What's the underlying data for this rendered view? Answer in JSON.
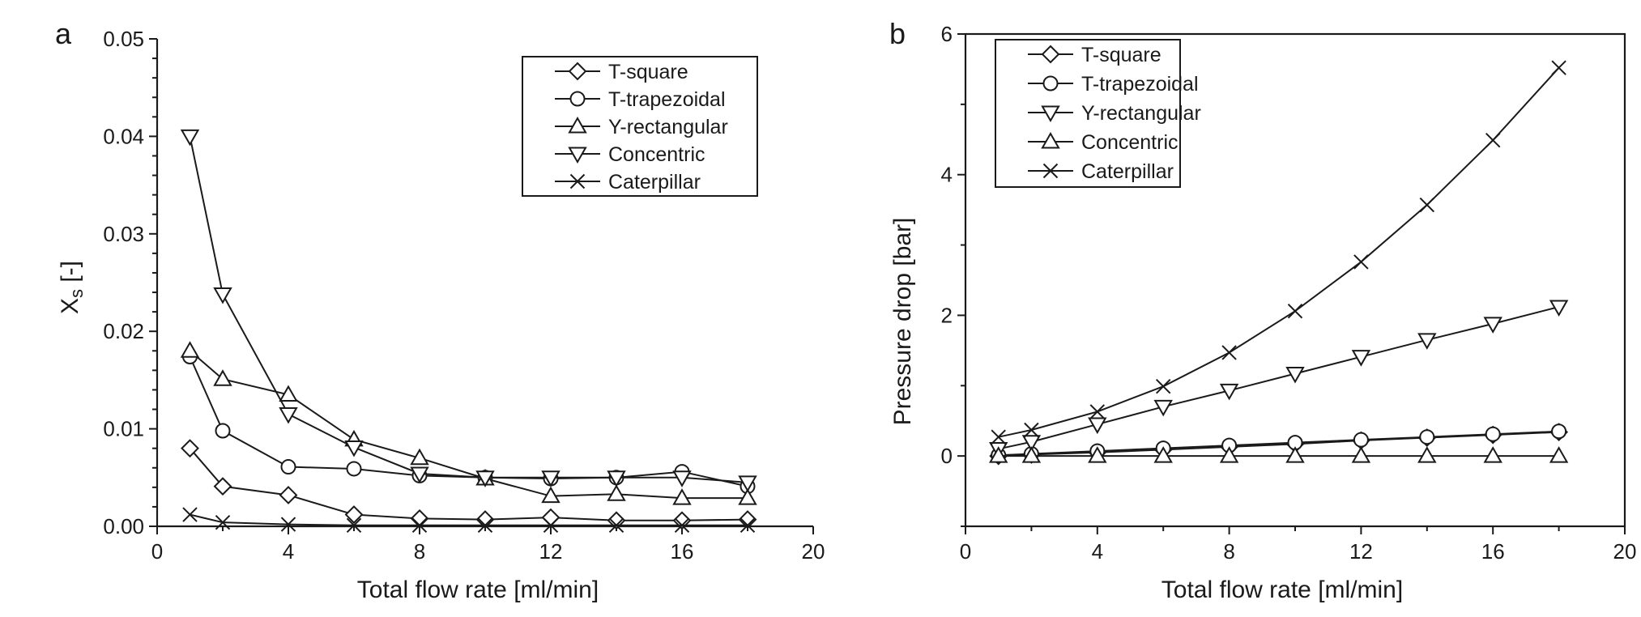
{
  "chart_data": [
    {
      "type": "line",
      "panel": "a",
      "title": "",
      "xlabel": "Total flow rate [ml/min]",
      "ylabel": "X",
      "ylabel_sub": "s",
      "ylabel_suffix": " [-]",
      "xlim": [
        0,
        20
      ],
      "ylim": [
        0,
        0.05
      ],
      "x_ticks": [
        "0",
        "4",
        "8",
        "12",
        "16",
        "20"
      ],
      "y_ticks": [
        "0.00",
        "0.01",
        "0.02",
        "0.03",
        "0.04",
        "0.05"
      ],
      "grid": false,
      "legend_position": "top-right",
      "series": [
        {
          "name": "T-square",
          "marker": "diamond",
          "x": [
            1,
            2,
            4,
            6,
            8,
            10,
            12,
            14,
            16,
            18
          ],
          "y": [
            0.008,
            0.0041,
            0.0032,
            0.0012,
            0.0008,
            0.0007,
            0.0009,
            0.0006,
            0.0006,
            0.0007
          ]
        },
        {
          "name": "T-trapezoidal",
          "marker": "circle",
          "x": [
            1,
            2,
            4,
            6,
            8,
            10,
            12,
            14,
            16,
            18
          ],
          "y": [
            0.0174,
            0.0098,
            0.0061,
            0.0059,
            0.0052,
            0.005,
            0.0049,
            0.005,
            0.0056,
            0.0041
          ]
        },
        {
          "name": "Y-rectangular",
          "marker": "triangle-up",
          "x": [
            1,
            2,
            4,
            6,
            8,
            10,
            12,
            14,
            16,
            18
          ],
          "y": [
            0.018,
            0.0151,
            0.0135,
            0.0089,
            0.007,
            0.0049,
            0.0031,
            0.0033,
            0.0029,
            0.0029
          ]
        },
        {
          "name": "Concentric",
          "marker": "triangle-down",
          "x": [
            1,
            2,
            4,
            6,
            8,
            10,
            12,
            14,
            16,
            18
          ],
          "y": [
            0.04,
            0.0238,
            0.0115,
            0.0081,
            0.0054,
            0.005,
            0.005,
            0.005,
            0.005,
            0.0045
          ]
        },
        {
          "name": "Caterpillar",
          "marker": "x",
          "x": [
            1,
            2,
            4,
            6,
            8,
            10,
            12,
            14,
            16,
            18
          ],
          "y": [
            0.0012,
            0.0004,
            0.0002,
            0.0001,
            0.0001,
            0.0001,
            0.0001,
            0.0001,
            0.0001,
            0.0001
          ]
        }
      ]
    },
    {
      "type": "line",
      "panel": "b",
      "title": "",
      "xlabel": "Total flow rate [ml/min]",
      "ylabel": "Pressure drop [bar]",
      "xlim": [
        0,
        20
      ],
      "ylim": [
        -1,
        6
      ],
      "x_ticks": [
        "0",
        "4",
        "8",
        "12",
        "16",
        "20"
      ],
      "y_ticks": [
        "0",
        "2",
        "4",
        "6"
      ],
      "grid": false,
      "legend_position": "top-left",
      "series": [
        {
          "name": "T-square",
          "marker": "diamond",
          "x": [
            1,
            2,
            4,
            6,
            8,
            10,
            12,
            14,
            16,
            18
          ],
          "y": [
            0.0,
            0.02,
            0.05,
            0.09,
            0.13,
            0.17,
            0.22,
            0.26,
            0.3,
            0.34
          ]
        },
        {
          "name": "T-trapezoidal",
          "marker": "circle",
          "x": [
            1,
            2,
            4,
            6,
            8,
            10,
            12,
            14,
            16,
            18
          ],
          "y": [
            0.01,
            0.03,
            0.07,
            0.11,
            0.15,
            0.19,
            0.23,
            0.27,
            0.31,
            0.35
          ]
        },
        {
          "name": "Y-rectangular",
          "marker": "triangle-down",
          "x": [
            1,
            2,
            4,
            6,
            8,
            10,
            12,
            14,
            16,
            18
          ],
          "y": [
            0.1,
            0.2,
            0.45,
            0.7,
            0.93,
            1.17,
            1.41,
            1.65,
            1.88,
            2.12
          ]
        },
        {
          "name": "Concentric",
          "marker": "triangle-up",
          "x": [
            1,
            2,
            4,
            6,
            8,
            10,
            12,
            14,
            16,
            18
          ],
          "y": [
            0.0,
            0.0,
            0.0,
            0.0,
            0.0,
            0.0,
            0.0,
            0.0,
            0.0,
            0.0
          ]
        },
        {
          "name": "Caterpillar",
          "marker": "x",
          "x": [
            1,
            2,
            4,
            6,
            8,
            10,
            12,
            14,
            16,
            18
          ],
          "y": [
            0.27,
            0.37,
            0.63,
            0.99,
            1.47,
            2.06,
            2.76,
            3.57,
            4.49,
            5.52
          ]
        }
      ]
    }
  ]
}
